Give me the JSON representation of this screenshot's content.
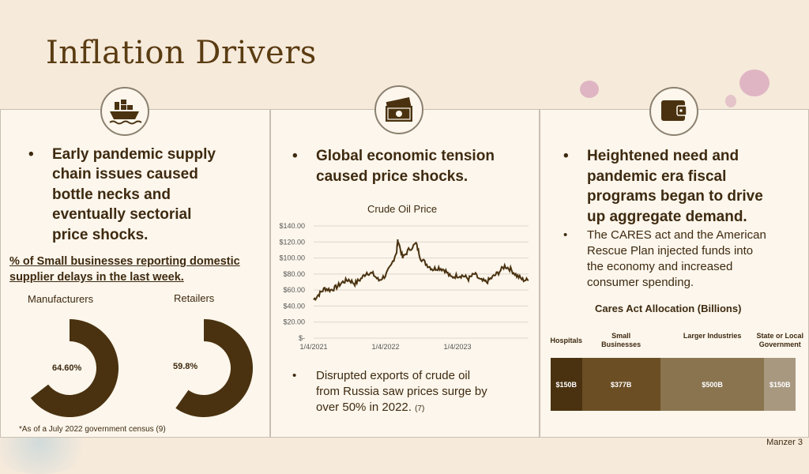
{
  "title": "Inflation Drivers",
  "footer": "Manzer 3",
  "colors": {
    "background": "#f6eadb",
    "panel": "#fcf6ec",
    "accent_dark": "#4a3210",
    "text": "#3e2a10"
  },
  "panel1": {
    "icon": "cargo-ship-icon",
    "bullet_lines": [
      "Early pandemic supply",
      "chain issues caused",
      "bottle necks and",
      "eventually sectorial",
      "price shocks."
    ],
    "survey_lines": [
      "% of Small businesses reporting domestic",
      "supplier delays in the last week."
    ],
    "footnote": "*As of a July 2022 government census (9)"
  },
  "panel2": {
    "icon": "money-bill-icon",
    "bullet_lines": [
      "Global economic tension",
      "caused price shocks."
    ],
    "sub_bullet_lines": [
      "Disrupted exports of crude oil",
      "from Russia saw prices surge by",
      "over 50% in 2022."
    ],
    "sub_bullet_ref": "(7)"
  },
  "panel3": {
    "icon": "wallet-icon",
    "bullet_lines": [
      "Heightened need and",
      "pandemic era fiscal",
      "programs began to drive",
      "up aggregate demand."
    ],
    "sub_bullet_lines": [
      "The CARES act and the American",
      "Rescue Plan injected funds into",
      "the economy and increased",
      "consumer spending."
    ]
  },
  "chart_data": [
    {
      "type": "pie",
      "variant": "donut",
      "title": "Manufacturers",
      "value_label": "64.60%",
      "values": [
        64.6,
        35.4
      ],
      "colors": [
        "#4a3210",
        "#fcf6ec"
      ]
    },
    {
      "type": "pie",
      "variant": "donut",
      "title": "Retailers",
      "value_label": "59.8%",
      "values": [
        59.8,
        40.2
      ],
      "colors": [
        "#4a3210",
        "#fcf6ec"
      ]
    },
    {
      "type": "line",
      "title": "Crude Oil Price",
      "xlim": [
        "2021-01-04",
        "2023-12-31"
      ],
      "ylim": [
        0,
        140
      ],
      "yticks": [
        "$-",
        "$20.00",
        "$40.00",
        "$60.00",
        "$80.00",
        "$100.00",
        "$120.00",
        "$140.00"
      ],
      "xticks": [
        "1/4/2021",
        "1/4/2022",
        "1/4/2023"
      ],
      "grid": true,
      "x": [
        "2021-01-04",
        "2021-02-01",
        "2021-03-01",
        "2021-04-01",
        "2021-05-01",
        "2021-06-01",
        "2021-07-01",
        "2021-08-01",
        "2021-09-01",
        "2021-10-01",
        "2021-11-01",
        "2021-12-01",
        "2022-01-03",
        "2022-02-01",
        "2022-03-01",
        "2022-03-08",
        "2022-04-01",
        "2022-05-01",
        "2022-06-08",
        "2022-07-01",
        "2022-08-01",
        "2022-09-01",
        "2022-10-01",
        "2022-11-01",
        "2022-12-01",
        "2023-01-03",
        "2023-02-01",
        "2023-03-01",
        "2023-04-01",
        "2023-05-01",
        "2023-06-01",
        "2023-07-01",
        "2023-08-01",
        "2023-09-01",
        "2023-10-01",
        "2023-11-01",
        "2023-12-01",
        "2023-12-31"
      ],
      "values": [
        48,
        55,
        62,
        60,
        64,
        70,
        73,
        68,
        74,
        82,
        80,
        72,
        78,
        90,
        108,
        123,
        100,
        110,
        118,
        100,
        92,
        86,
        88,
        85,
        76,
        78,
        78,
        74,
        80,
        72,
        70,
        76,
        82,
        90,
        86,
        78,
        73,
        72
      ]
    },
    {
      "type": "bar",
      "variant": "stacked-horizontal",
      "title": "Cares Act Allocation (Billions)",
      "categories": [
        "Hospitals",
        "Small Businesses",
        "Larger Industries",
        "State or Local Government"
      ],
      "values": [
        150,
        377,
        500,
        150
      ],
      "value_labels": [
        "$150B",
        "$377B",
        "$500B",
        "$150B"
      ],
      "colors": [
        "#4a3210",
        "#6b4e24",
        "#8a7450",
        "#a89880"
      ]
    }
  ]
}
